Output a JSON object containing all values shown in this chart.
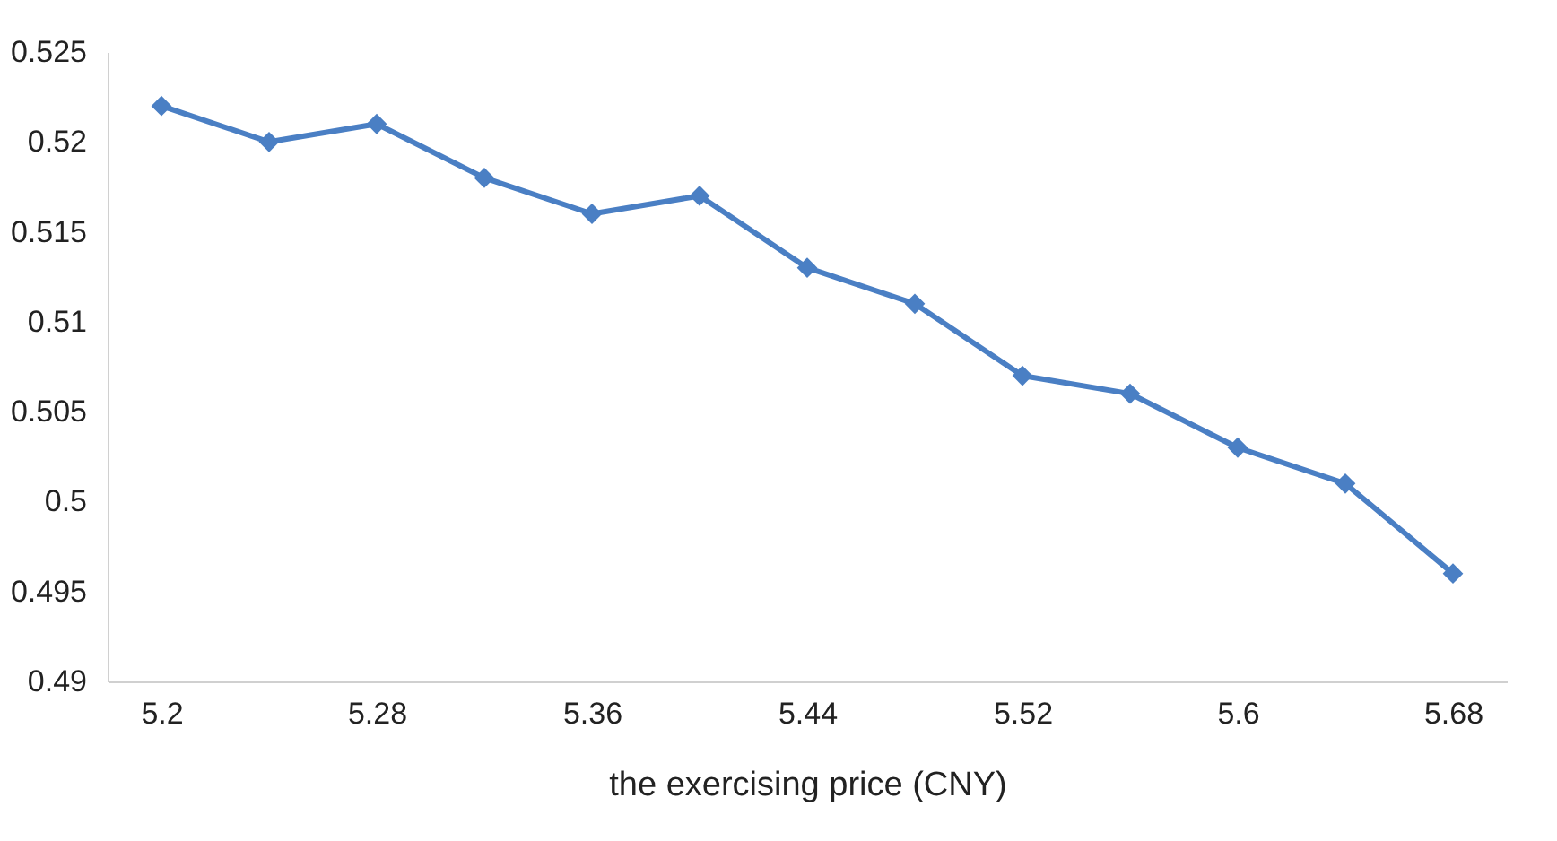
{
  "chart_data": {
    "type": "line",
    "xlabel": "the exercising price (CNY)",
    "x": [
      5.2,
      5.24,
      5.28,
      5.32,
      5.36,
      5.4,
      5.44,
      5.48,
      5.52,
      5.56,
      5.6,
      5.64,
      5.68
    ],
    "series": [
      {
        "color": "#4a7fc4",
        "values": [
          0.522,
          0.52,
          0.521,
          0.518,
          0.516,
          0.517,
          0.513,
          0.511,
          0.507,
          0.506,
          0.503,
          0.501,
          0.496
        ]
      }
    ],
    "xlim": [
      5.18,
      5.7
    ],
    "xticks": [
      5.2,
      5.28,
      5.36,
      5.44,
      5.52,
      5.6,
      5.68
    ],
    "ylim": [
      0.49,
      0.525
    ],
    "yticks": [
      0.49,
      0.495,
      0.5,
      0.505,
      0.51,
      0.515,
      0.52,
      0.525
    ],
    "marker": "diamond",
    "line_style": "solid",
    "grid": false,
    "legend": false
  }
}
